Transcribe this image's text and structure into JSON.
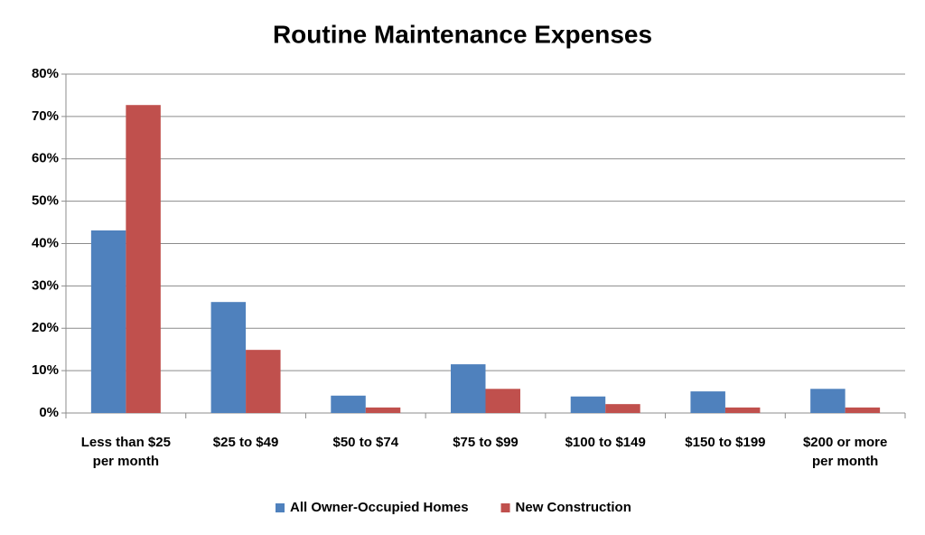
{
  "chart_data": {
    "type": "bar",
    "title": "Routine Maintenance Expenses",
    "categories": [
      "Less than $25\nper month",
      "$25 to $49",
      "$50 to $74",
      "$75 to $99",
      "$100 to $149",
      "$150 to $199",
      "$200 or more\nper month"
    ],
    "series": [
      {
        "name": "All Owner-Occupied Homes",
        "color": "#4f81bd",
        "values": [
          43.1,
          26.2,
          4.1,
          11.5,
          3.9,
          5.1,
          5.7
        ]
      },
      {
        "name": "New Construction",
        "color": "#c0504d",
        "values": [
          72.7,
          14.9,
          1.3,
          5.7,
          2.1,
          1.3,
          1.3
        ]
      }
    ],
    "ylim": [
      0,
      80
    ],
    "yticks": [
      {
        "value": 0,
        "label": "0%"
      },
      {
        "value": 10,
        "label": "10%"
      },
      {
        "value": 20,
        "label": "20%"
      },
      {
        "value": 30,
        "label": "30%"
      },
      {
        "value": 40,
        "label": "40%"
      },
      {
        "value": 50,
        "label": "50%"
      },
      {
        "value": 60,
        "label": "60%"
      },
      {
        "value": 70,
        "label": "70%"
      },
      {
        "value": 80,
        "label": "80%"
      }
    ],
    "grid": true,
    "legend": "bottom"
  }
}
